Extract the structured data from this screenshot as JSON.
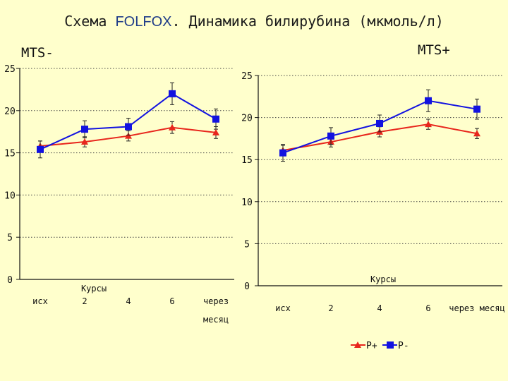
{
  "title": {
    "part1": "Схема ",
    "accent": "FOLFOX",
    "part2": ". Динамика билирубина (мкмоль/л)"
  },
  "panels": {
    "left_label": "MTS-",
    "right_label": "MTS+"
  },
  "legend": {
    "p_plus": "P+",
    "p_minus": "P-"
  },
  "colors": {
    "background": "#FFFFCC",
    "p_plus": "#E8261C",
    "p_minus": "#1212E0",
    "grid": "#444444"
  },
  "chart_data": [
    {
      "type": "line",
      "panel": "MTS-",
      "xlabel": "Курсы",
      "categories": [
        "исх",
        "2",
        "4",
        "6",
        "через месяц"
      ],
      "ylim": [
        0,
        25
      ],
      "yticks": [
        0,
        5,
        10,
        15,
        20,
        25
      ],
      "grid": "horizontal dotted",
      "series": [
        {
          "name": "P+",
          "marker": "triangle",
          "values": [
            15.8,
            16.3,
            17.0,
            18.0,
            17.4
          ],
          "errors": [
            0.6,
            0.6,
            0.6,
            0.7,
            0.7
          ]
        },
        {
          "name": "P-",
          "marker": "square",
          "values": [
            15.4,
            17.8,
            18.1,
            22.0,
            19.0
          ],
          "errors": [
            1.0,
            1.0,
            1.0,
            1.3,
            1.2
          ]
        }
      ]
    },
    {
      "type": "line",
      "panel": "MTS+",
      "xlabel": "Курсы",
      "categories": [
        "исх",
        "2",
        "4",
        "6",
        "через месяц"
      ],
      "ylim": [
        0,
        25
      ],
      "yticks": [
        0,
        5,
        10,
        15,
        20,
        25
      ],
      "grid": "horizontal dotted",
      "legend": "bottom",
      "series": [
        {
          "name": "P+",
          "marker": "triangle",
          "values": [
            16.1,
            17.1,
            18.3,
            19.2,
            18.1
          ],
          "errors": [
            0.6,
            0.6,
            0.6,
            0.6,
            0.6
          ]
        },
        {
          "name": "P-",
          "marker": "square",
          "values": [
            15.8,
            17.8,
            19.3,
            22.0,
            21.0
          ],
          "errors": [
            1.0,
            1.0,
            1.0,
            1.3,
            1.2
          ]
        }
      ]
    }
  ]
}
